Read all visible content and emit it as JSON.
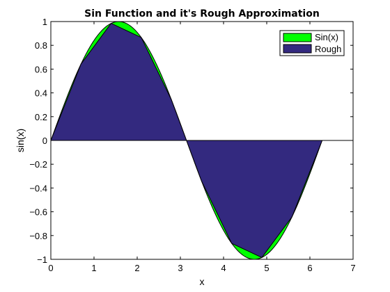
{
  "chart_data": {
    "type": "area",
    "title": "Sin Function and it's Rough Approximation",
    "xlabel": "x",
    "ylabel": "sin(x)",
    "xlim": [
      0,
      7
    ],
    "ylim": [
      -1,
      1
    ],
    "xticks": [
      0,
      1,
      2,
      3,
      4,
      5,
      6,
      7
    ],
    "xtick_labels": [
      "0",
      "1",
      "2",
      "3",
      "4",
      "5",
      "6",
      "7"
    ],
    "yticks": [
      -1,
      -0.8,
      -0.6,
      -0.4,
      -0.2,
      0,
      0.2,
      0.4,
      0.6,
      0.8,
      1
    ],
    "ytick_labels": [
      "−1",
      "−0.8",
      "−0.6",
      "−0.4",
      "−0.2",
      "0",
      "0.2",
      "0.4",
      "0.6",
      "0.8",
      "1"
    ],
    "grid": false,
    "legend_position": "top-right",
    "series": [
      {
        "name": "Sin(x)",
        "color": "#00ff00",
        "function": "sin",
        "x_range": [
          0,
          6.2832
        ]
      },
      {
        "name": "Rough",
        "color": "#33297f",
        "x": [
          0,
          0.6981,
          1.3963,
          2.0944,
          2.7925,
          3.4907,
          4.1888,
          4.8869,
          5.5851,
          6.2832
        ],
        "values": [
          0,
          0.6428,
          0.9848,
          0.866,
          0.342,
          -0.342,
          -0.866,
          -0.9848,
          -0.6428,
          0
        ]
      }
    ],
    "baseline": 0
  }
}
